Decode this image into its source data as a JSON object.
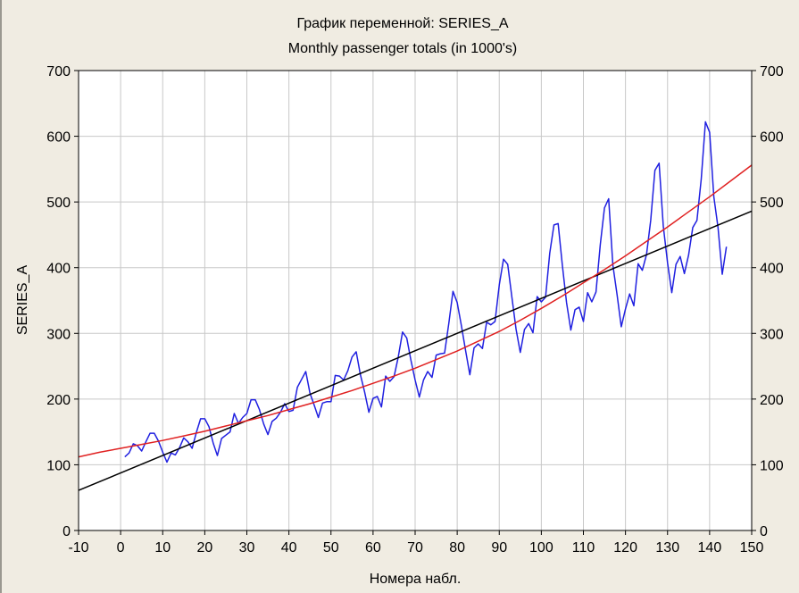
{
  "chart_data": {
    "type": "line",
    "title": "График переменной: SERIES_A",
    "subtitle": "Monthly passenger totals (in 1000's)",
    "xlabel": "Номера набл.",
    "ylabel": "SERIES_A",
    "xlim": [
      -10,
      150
    ],
    "ylim": [
      0,
      700
    ],
    "x_ticks": [
      -10,
      0,
      10,
      20,
      30,
      40,
      50,
      60,
      70,
      80,
      90,
      100,
      110,
      120,
      130,
      140,
      150
    ],
    "y_ticks": [
      0,
      100,
      200,
      300,
      400,
      500,
      600,
      700
    ],
    "grid": true,
    "right_axis_ticks": true,
    "series": [
      {
        "color": "#2020e0",
        "x": [
          1,
          2,
          3,
          4,
          5,
          6,
          7,
          8,
          9,
          10,
          11,
          12,
          13,
          14,
          15,
          16,
          17,
          18,
          19,
          20,
          21,
          22,
          23,
          24,
          25,
          26,
          27,
          28,
          29,
          30,
          31,
          32,
          33,
          34,
          35,
          36,
          37,
          38,
          39,
          40,
          41,
          42,
          43,
          44,
          45,
          46,
          47,
          48,
          49,
          50,
          51,
          52,
          53,
          54,
          55,
          56,
          57,
          58,
          59,
          60,
          61,
          62,
          63,
          64,
          65,
          66,
          67,
          68,
          69,
          70,
          71,
          72,
          73,
          74,
          75,
          76,
          77,
          78,
          79,
          80,
          81,
          82,
          83,
          84,
          85,
          86,
          87,
          88,
          89,
          90,
          91,
          92,
          93,
          94,
          95,
          96,
          97,
          98,
          99,
          100,
          101,
          102,
          103,
          104,
          105,
          106,
          107,
          108,
          109,
          110,
          111,
          112,
          113,
          114,
          115,
          116,
          117,
          118,
          119,
          120,
          121,
          122,
          123,
          124,
          125,
          126,
          127,
          128,
          129,
          130,
          131,
          132,
          133,
          134,
          135,
          136,
          137,
          138,
          139,
          140,
          141,
          142,
          143,
          144
        ],
        "y": [
          112,
          118,
          132,
          129,
          121,
          135,
          148,
          148,
          136,
          119,
          104,
          118,
          115,
          126,
          141,
          135,
          125,
          149,
          170,
          170,
          158,
          133,
          114,
          140,
          145,
          150,
          178,
          163,
          172,
          178,
          199,
          199,
          184,
          162,
          146,
          166,
          171,
          180,
          193,
          181,
          183,
          218,
          230,
          242,
          209,
          191,
          172,
          194,
          196,
          196,
          236,
          235,
          229,
          243,
          264,
          272,
          237,
          211,
          180,
          201,
          204,
          188,
          235,
          227,
          234,
          264,
          302,
          293,
          259,
          229,
          203,
          229,
          242,
          233,
          267,
          269,
          270,
          315,
          364,
          347,
          312,
          274,
          237,
          278,
          284,
          277,
          317,
          313,
          318,
          374,
          413,
          405,
          355,
          306,
          271,
          306,
          315,
          301,
          356,
          348,
          355,
          422,
          465,
          467,
          404,
          347,
          305,
          336,
          340,
          318,
          362,
          348,
          363,
          435,
          491,
          505,
          404,
          359,
          310,
          337,
          360,
          342,
          406,
          396,
          420,
          472,
          548,
          559,
          463,
          407,
          362,
          405,
          417,
          391,
          419,
          461,
          472,
          535,
          622,
          606,
          508,
          461,
          390,
          432
        ]
      },
      {
        "color": "#000000",
        "x": [
          -10,
          150
        ],
        "y": [
          61,
          486
        ]
      },
      {
        "color": "#e02020",
        "x": [
          -10,
          -5,
          0,
          5,
          10,
          15,
          20,
          25,
          30,
          35,
          40,
          45,
          50,
          55,
          60,
          65,
          70,
          75,
          80,
          85,
          90,
          95,
          100,
          105,
          110,
          115,
          120,
          125,
          130,
          135,
          140,
          145,
          150
        ],
        "y": [
          112,
          119,
          125,
          131,
          137,
          144,
          151,
          159,
          167,
          175,
          184,
          193,
          203,
          213,
          224,
          235,
          247,
          260,
          273,
          288,
          303,
          320,
          338,
          357,
          377,
          397,
          418,
          440,
          462,
          485,
          508,
          532,
          556
        ]
      }
    ]
  }
}
